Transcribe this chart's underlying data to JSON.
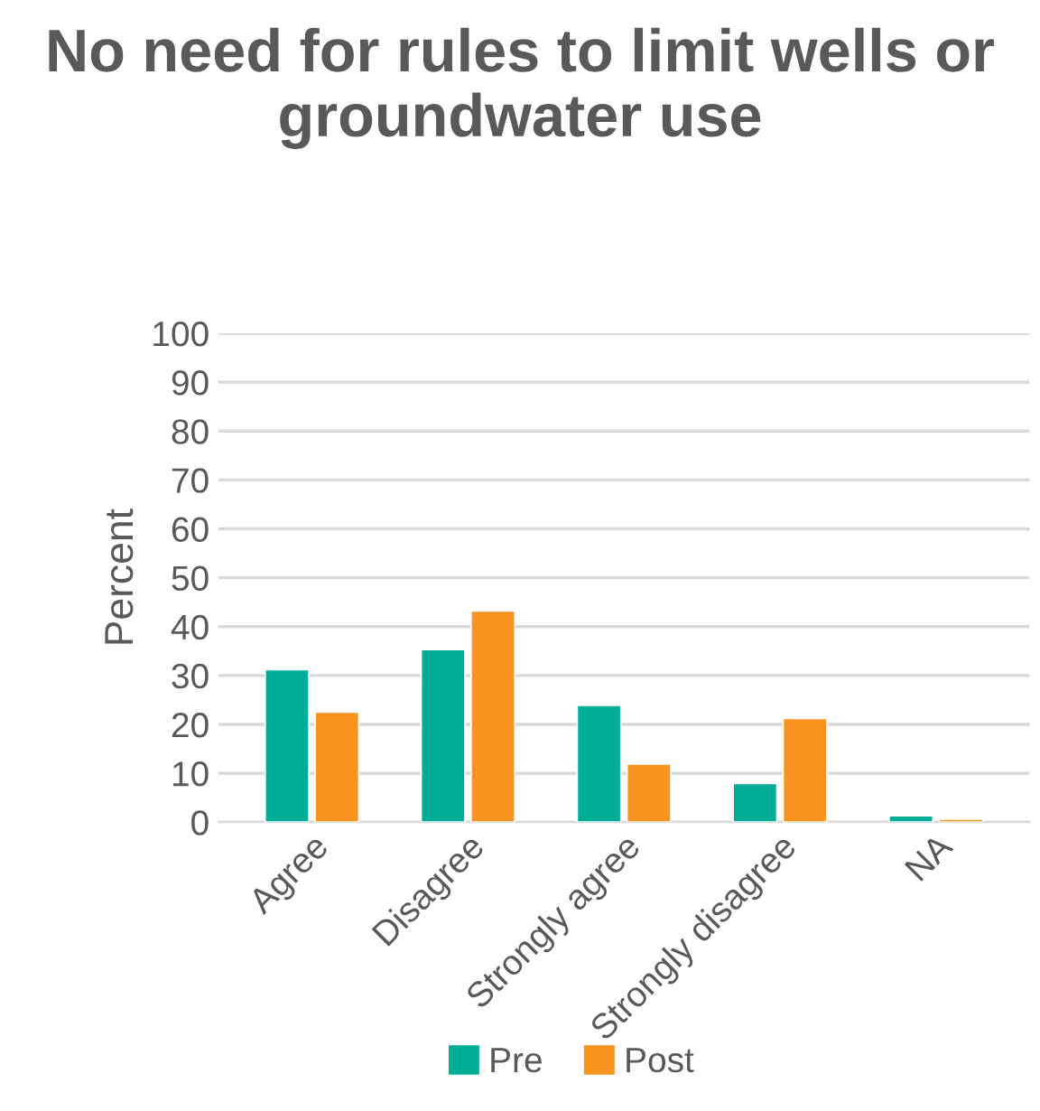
{
  "chart_data": {
    "type": "bar",
    "title": "No need for rules to limit wells or groundwater use",
    "ylabel": "Percent",
    "categories": [
      "Agree",
      "Disagree",
      "Strongly agree",
      "Strongly disagree",
      "NA"
    ],
    "series": [
      {
        "name": "Pre",
        "color": "#00ae98",
        "values": [
          31.2,
          35.3,
          23.9,
          7.9,
          1.3
        ]
      },
      {
        "name": "Post",
        "color": "#f7931e",
        "values": [
          22.5,
          43.2,
          11.9,
          21.2,
          0.6
        ]
      }
    ],
    "ylim": [
      0,
      100
    ],
    "yticks": [
      0,
      10,
      20,
      30,
      40,
      50,
      60,
      70,
      80,
      90,
      100
    ],
    "grid": "y",
    "legend": "bottom"
  }
}
